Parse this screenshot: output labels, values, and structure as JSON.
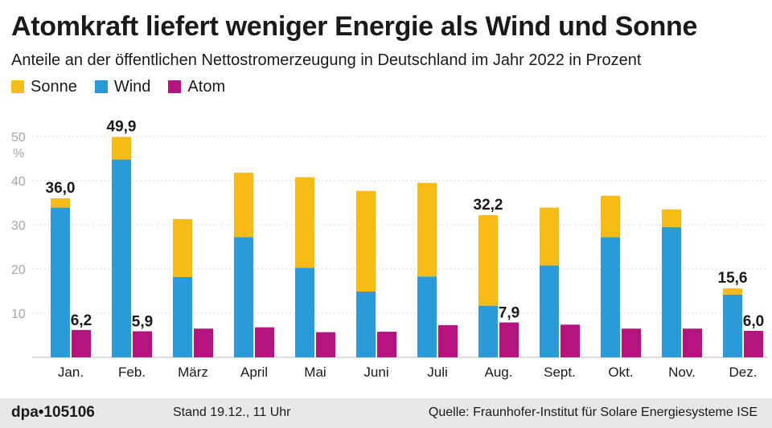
{
  "title": "Atomkraft liefert weniger Energie als Wind und Sonne",
  "subtitle": "Anteile an der öffentlichen Nettostromerzeugung in Deutschland im Jahr 2022 in Prozent",
  "legend": [
    {
      "name": "Sonne",
      "color": "#f7bb17"
    },
    {
      "name": "Wind",
      "color": "#2b9ad8"
    },
    {
      "name": "Atom",
      "color": "#b5147f"
    }
  ],
  "footer": {
    "brand": "dpa•105106",
    "stand": "Stand 19.12., 11 Uhr",
    "source": "Quelle: Fraunhofer-Institut für Solare Energiesysteme ISE"
  },
  "chart_data": {
    "type": "bar",
    "stacked_series": [
      "Wind",
      "Sonne"
    ],
    "categories": [
      "Jan.",
      "Feb.",
      "März",
      "April",
      "Mai",
      "Juni",
      "Juli",
      "Aug.",
      "Sept.",
      "Okt.",
      "Nov.",
      "Dez."
    ],
    "series": [
      {
        "name": "Wind",
        "color": "#2b9ad8",
        "values": [
          33.9,
          44.8,
          18.2,
          27.2,
          20.3,
          14.9,
          18.3,
          11.7,
          20.8,
          27.2,
          29.5,
          14.2
        ]
      },
      {
        "name": "Sonne",
        "color": "#f7bb17",
        "values": [
          2.1,
          5.1,
          13.1,
          14.6,
          20.5,
          22.8,
          21.2,
          20.5,
          13.1,
          9.4,
          4.0,
          1.4
        ]
      },
      {
        "name": "Atom",
        "color": "#b5147f",
        "values": [
          6.2,
          5.9,
          6.5,
          6.8,
          5.7,
          5.8,
          7.3,
          7.9,
          7.4,
          6.5,
          6.5,
          6.0
        ]
      }
    ],
    "labels": [
      {
        "category": "Jan.",
        "series": "Wind+Sonne",
        "text": "36,0"
      },
      {
        "category": "Jan.",
        "series": "Atom",
        "text": "6,2"
      },
      {
        "category": "Feb.",
        "series": "Wind+Sonne",
        "text": "49,9"
      },
      {
        "category": "Feb.",
        "series": "Atom",
        "text": "5,9"
      },
      {
        "category": "Aug.",
        "series": "Wind+Sonne",
        "text": "32,2"
      },
      {
        "category": "Aug.",
        "series": "Atom",
        "text": "7,9"
      },
      {
        "category": "Dez.",
        "series": "Wind+Sonne",
        "text": "15,6"
      },
      {
        "category": "Dez.",
        "series": "Atom",
        "text": "6,0"
      }
    ],
    "yticks": [
      10,
      20,
      30,
      40,
      50
    ],
    "yunit": "%",
    "ylim": [
      0,
      50
    ],
    "grid": true
  }
}
